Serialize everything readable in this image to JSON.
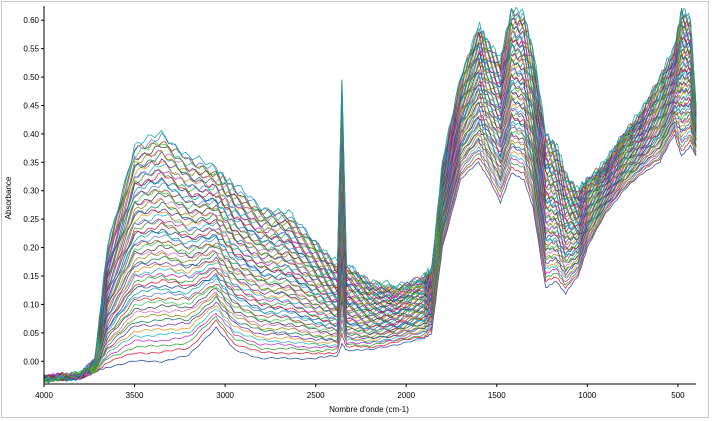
{
  "chart_data": {
    "type": "line",
    "xlabel": "Nombre d'onde (cm-1)",
    "ylabel": "Absorbance",
    "xlim": [
      4000,
      400
    ],
    "ylim": [
      -0.04,
      0.625
    ],
    "x_reversed": true,
    "grid": false,
    "legend": "none",
    "x_ticks": [
      4000,
      3500,
      3000,
      2500,
      2000,
      1500,
      1000,
      500
    ],
    "y_ticks": [
      0.0,
      0.05,
      0.1,
      0.15,
      0.2,
      0.25,
      0.3,
      0.35,
      0.4,
      0.45,
      0.5,
      0.55,
      0.6
    ],
    "y_tick_labels": [
      "0.00",
      "0.05",
      "0.10",
      "0.15",
      "0.20",
      "0.25",
      "0.30",
      "0.35",
      "0.40",
      "0.45",
      "0.50",
      "0.55",
      "0.60"
    ],
    "x_tick_labels": [
      "4000",
      "3500",
      "3000",
      "2500",
      "2000",
      "1500",
      "1000",
      "500"
    ],
    "series_count": 60,
    "series_profile": {
      "x": [
        4000,
        3800,
        3720,
        3650,
        3500,
        3350,
        3200,
        3050,
        2950,
        2800,
        2650,
        2500,
        2380,
        2355,
        2330,
        2200,
        2050,
        1900,
        1860,
        1800,
        1700,
        1600,
        1560,
        1480,
        1420,
        1350,
        1300,
        1230,
        1170,
        1120,
        1050,
        1000,
        900,
        800,
        700,
        600,
        520,
        480,
        430,
        400
      ],
      "upper": [
        -0.03,
        -0.025,
        0.0,
        0.2,
        0.38,
        0.4,
        0.36,
        0.34,
        0.31,
        0.27,
        0.26,
        0.21,
        0.17,
        0.5,
        0.17,
        0.14,
        0.13,
        0.15,
        0.16,
        0.35,
        0.5,
        0.59,
        0.57,
        0.53,
        0.62,
        0.61,
        0.55,
        0.4,
        0.38,
        0.33,
        0.3,
        0.32,
        0.35,
        0.4,
        0.44,
        0.5,
        0.55,
        0.62,
        0.6,
        0.45
      ],
      "lower": [
        -0.03,
        -0.03,
        -0.02,
        -0.01,
        0.0,
        0.0,
        0.01,
        0.06,
        0.02,
        0.005,
        0.005,
        0.005,
        0.01,
        0.03,
        0.02,
        0.02,
        0.03,
        0.04,
        0.05,
        0.2,
        0.32,
        0.35,
        0.33,
        0.28,
        0.33,
        0.32,
        0.27,
        0.13,
        0.14,
        0.12,
        0.15,
        0.2,
        0.26,
        0.3,
        0.33,
        0.35,
        0.4,
        0.36,
        0.38,
        0.36
      ]
    },
    "colors": [
      "#1b3fa8",
      "#e0142b",
      "#1fa01f",
      "#c01fc0",
      "#14b4c8",
      "#d89414",
      "#6a1fb0",
      "#0a7a5a",
      "#8c8c00",
      "#e060c0",
      "#3c3c3c",
      "#2ac84a",
      "#a03c14",
      "#4a78e0",
      "#00a0a0"
    ]
  }
}
